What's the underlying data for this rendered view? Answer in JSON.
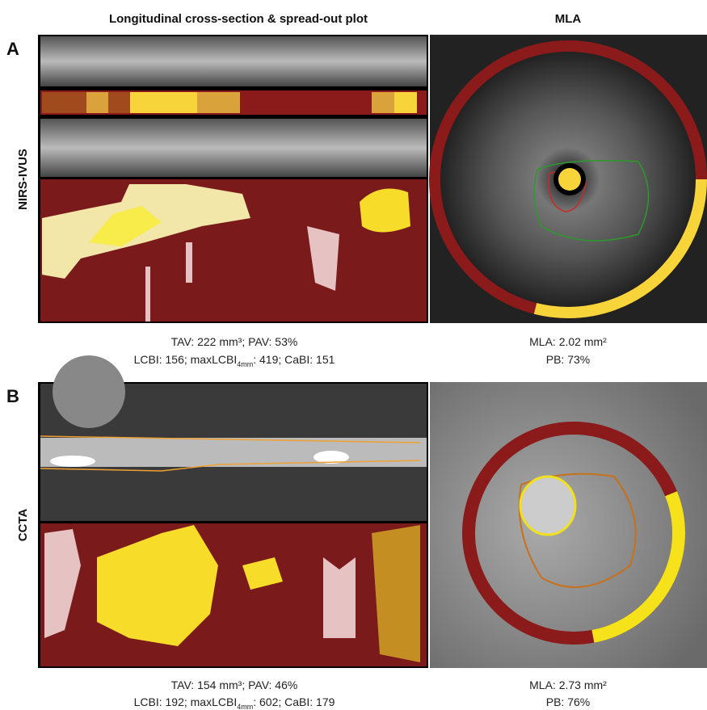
{
  "header": {
    "left_title": "Longitudinal cross-section & spread-out plot",
    "right_title": "MLA"
  },
  "panels": [
    {
      "letter": "A",
      "modality": "NIRS-IVUS",
      "left_caption": {
        "line1": "TAV: 222 mm³; PAV: 53%",
        "line2": [
          "LCBI: 156; maxLCBI",
          "4mm",
          ": 419; CaBI: 151"
        ]
      },
      "right_caption": {
        "line1": "MLA: 2.02 mm²",
        "line2": "PB: 73%"
      }
    },
    {
      "letter": "B",
      "modality": "CCTA",
      "left_caption": {
        "line1": "TAV: 154 mm³; PAV: 46%",
        "line2": [
          "LCBI: 192; maxLCBI",
          "4mm",
          ": 602; CaBI: 179"
        ]
      },
      "right_caption": {
        "line1": "MLA: 2.73 mm²",
        "line2": "PB: 76%"
      }
    }
  ]
}
